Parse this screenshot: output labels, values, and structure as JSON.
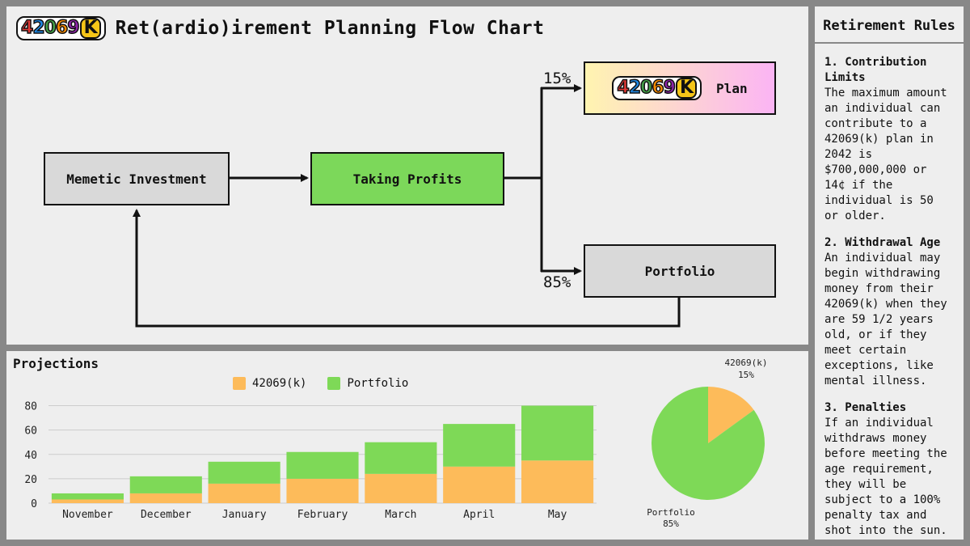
{
  "header": {
    "logo_digits": "42069",
    "logo_k": "K",
    "title": "Ret(ardio)irement Planning Flow Chart"
  },
  "flow": {
    "memetic": "Memetic Investment",
    "taking_profits": "Taking Profits",
    "plan": "Plan",
    "portfolio": "Portfolio",
    "pct_plan": "15%",
    "pct_portfolio": "85%"
  },
  "projections": {
    "title": "Projections",
    "legend": [
      "42069(k)",
      "Portfolio"
    ]
  },
  "chart_data": [
    {
      "type": "bar",
      "stacked": true,
      "categories": [
        "November",
        "December",
        "January",
        "February",
        "March",
        "April",
        "May"
      ],
      "series": [
        {
          "name": "42069(k)",
          "color": "#fdbb5a",
          "values": [
            3,
            8,
            16,
            20,
            24,
            30,
            35
          ]
        },
        {
          "name": "Portfolio",
          "color": "#7ed957",
          "values": [
            5,
            14,
            18,
            22,
            26,
            35,
            45
          ]
        }
      ],
      "yticks": [
        0,
        20,
        40,
        60,
        80
      ],
      "ylim": [
        0,
        85
      ],
      "grid": true,
      "legend_position": "top"
    },
    {
      "type": "pie",
      "labels": [
        "42069(k)",
        "Portfolio"
      ],
      "values": [
        15,
        85
      ],
      "value_labels": [
        "15%",
        "85%"
      ],
      "colors": [
        "#fdbb5a",
        "#7ed957"
      ]
    }
  ],
  "rules": {
    "title": "Retirement Rules",
    "items": [
      {
        "heading": "1. Contribution Limits",
        "body": "The maximum amount an individual can contribute to a 42069(k) plan in 2042 is $700,000,000 or 14¢ if the individual is 50 or older."
      },
      {
        "heading": "2. Withdrawal Age",
        "body": "An individual may begin withdrawing money from their 42069(k) when they are 59 1/2 years old, or if they meet certain exceptions, like mental illness."
      },
      {
        "heading": "3. Penalties",
        "body": "If an individual withdraws money before meeting the age requirement, they will be subject to a 100% penalty tax and shot into the sun."
      }
    ]
  }
}
